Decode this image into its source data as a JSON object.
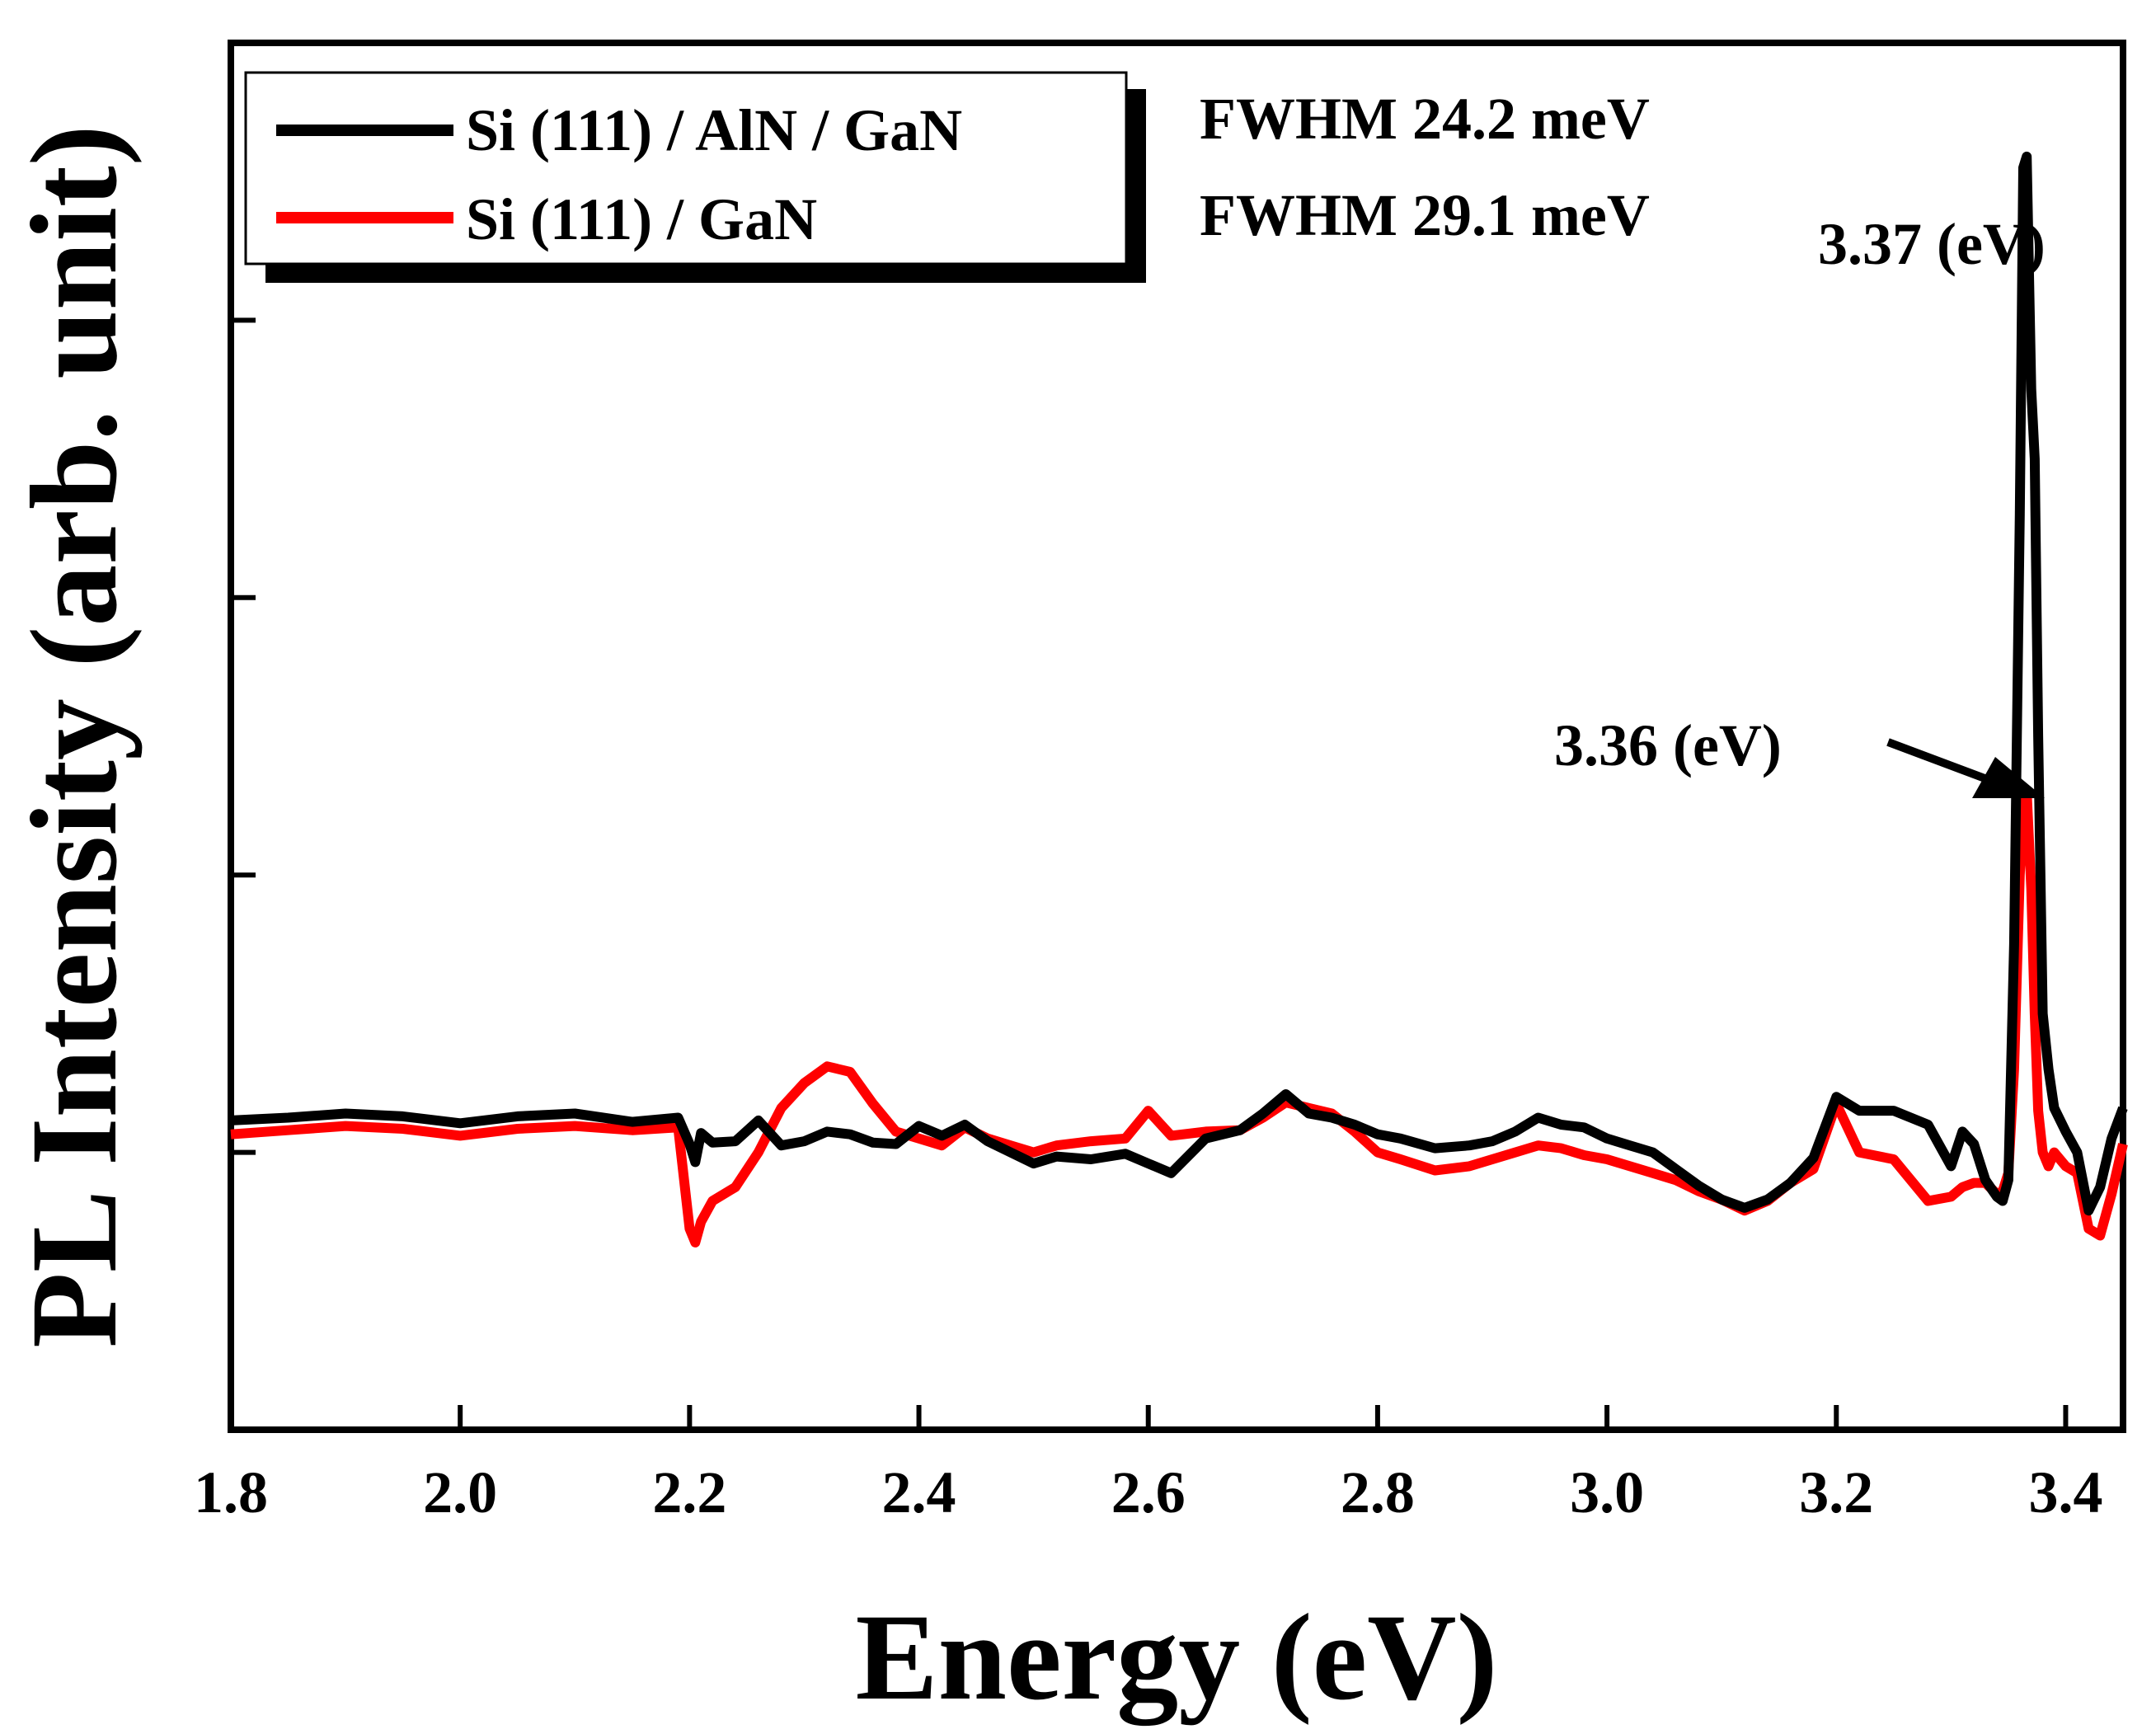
{
  "chart_data": {
    "type": "line",
    "title": "",
    "xlabel": "Energy (eV)",
    "ylabel": "PL Intensity (arb. unit)",
    "xlim": [
      1.8,
      3.45
    ],
    "ylim": [
      0,
      1.0
    ],
    "xticks": [
      "1.8",
      "2.0",
      "2.2",
      "2.4",
      "2.6",
      "2.8",
      "3.0",
      "3.2",
      "3.4"
    ],
    "yticks_labeled": false,
    "grid": false,
    "legend": {
      "position": "top-left",
      "entries": [
        "Si (111) / AlN / GaN",
        "Si (111) / GaN"
      ]
    },
    "annotations": {
      "fwhm_1": "FWHM 24.2 meV",
      "fwhm_2": "FWHM 29.1 meV",
      "peak_1": "3.37 (eV)",
      "peak_2": "3.36 (eV)"
    },
    "colors": {
      "series_1": "#000000",
      "series_2": "#ff0000"
    },
    "series": [
      {
        "name": "Si (111) / AlN / GaN",
        "x": [
          1.8,
          1.85,
          1.9,
          1.95,
          2.0,
          2.05,
          2.1,
          2.15,
          2.19,
          2.2,
          2.205,
          2.21,
          2.22,
          2.24,
          2.26,
          2.28,
          2.3,
          2.32,
          2.34,
          2.36,
          2.38,
          2.4,
          2.42,
          2.44,
          2.46,
          2.48,
          2.5,
          2.52,
          2.55,
          2.58,
          2.6,
          2.62,
          2.65,
          2.68,
          2.7,
          2.72,
          2.74,
          2.76,
          2.78,
          2.8,
          2.82,
          2.85,
          2.88,
          2.9,
          2.92,
          2.94,
          2.96,
          2.98,
          3.0,
          3.02,
          3.04,
          3.06,
          3.08,
          3.1,
          3.12,
          3.14,
          3.16,
          3.18,
          3.2,
          3.22,
          3.25,
          3.28,
          3.3,
          3.31,
          3.32,
          3.33,
          3.34,
          3.345,
          3.35,
          3.355,
          3.36,
          3.363,
          3.366,
          3.37,
          3.373,
          3.376,
          3.38,
          3.385,
          3.39,
          3.4,
          3.41,
          3.42,
          3.43,
          3.44,
          3.45
        ],
        "values": [
          0.223,
          0.225,
          0.228,
          0.226,
          0.221,
          0.226,
          0.228,
          0.222,
          0.225,
          0.206,
          0.193,
          0.214,
          0.207,
          0.208,
          0.223,
          0.205,
          0.208,
          0.215,
          0.213,
          0.207,
          0.206,
          0.219,
          0.212,
          0.22,
          0.208,
          0.2,
          0.192,
          0.197,
          0.195,
          0.199,
          0.192,
          0.185,
          0.21,
          0.216,
          0.228,
          0.242,
          0.228,
          0.225,
          0.22,
          0.213,
          0.21,
          0.203,
          0.205,
          0.208,
          0.215,
          0.225,
          0.22,
          0.218,
          0.21,
          0.205,
          0.2,
          0.188,
          0.176,
          0.166,
          0.16,
          0.166,
          0.178,
          0.196,
          0.24,
          0.23,
          0.23,
          0.22,
          0.19,
          0.215,
          0.206,
          0.18,
          0.168,
          0.165,
          0.18,
          0.35,
          0.66,
          0.91,
          0.918,
          0.75,
          0.7,
          0.5,
          0.3,
          0.26,
          0.232,
          0.215,
          0.2,
          0.158,
          0.175,
          0.21,
          0.232
        ]
      },
      {
        "name": "Si (111) / GaN",
        "x": [
          1.8,
          1.85,
          1.9,
          1.95,
          2.0,
          2.05,
          2.1,
          2.15,
          2.19,
          2.2,
          2.205,
          2.21,
          2.22,
          2.24,
          2.26,
          2.28,
          2.3,
          2.32,
          2.34,
          2.36,
          2.38,
          2.4,
          2.42,
          2.44,
          2.46,
          2.48,
          2.5,
          2.52,
          2.55,
          2.58,
          2.6,
          2.62,
          2.65,
          2.68,
          2.7,
          2.72,
          2.74,
          2.76,
          2.78,
          2.8,
          2.82,
          2.85,
          2.88,
          2.9,
          2.92,
          2.94,
          2.96,
          2.98,
          3.0,
          3.02,
          3.04,
          3.06,
          3.08,
          3.1,
          3.12,
          3.14,
          3.16,
          3.18,
          3.2,
          3.22,
          3.25,
          3.28,
          3.3,
          3.31,
          3.32,
          3.33,
          3.34,
          3.345,
          3.35,
          3.355,
          3.36,
          3.363,
          3.366,
          3.37,
          3.373,
          3.376,
          3.38,
          3.385,
          3.39,
          3.4,
          3.41,
          3.42,
          3.43,
          3.44,
          3.45
        ],
        "values": [
          0.213,
          0.216,
          0.219,
          0.217,
          0.212,
          0.217,
          0.219,
          0.216,
          0.218,
          0.145,
          0.135,
          0.15,
          0.165,
          0.175,
          0.2,
          0.232,
          0.25,
          0.262,
          0.258,
          0.235,
          0.215,
          0.21,
          0.205,
          0.218,
          0.21,
          0.205,
          0.2,
          0.205,
          0.208,
          0.21,
          0.23,
          0.212,
          0.215,
          0.216,
          0.225,
          0.236,
          0.232,
          0.228,
          0.215,
          0.2,
          0.195,
          0.187,
          0.19,
          0.195,
          0.2,
          0.205,
          0.203,
          0.198,
          0.195,
          0.19,
          0.185,
          0.18,
          0.172,
          0.166,
          0.158,
          0.165,
          0.178,
          0.188,
          0.235,
          0.2,
          0.195,
          0.165,
          0.168,
          0.175,
          0.178,
          0.178,
          0.17,
          0.172,
          0.185,
          0.26,
          0.4,
          0.455,
          0.46,
          0.39,
          0.3,
          0.23,
          0.2,
          0.19,
          0.2,
          0.19,
          0.185,
          0.145,
          0.14,
          0.17,
          0.206
        ]
      }
    ]
  }
}
